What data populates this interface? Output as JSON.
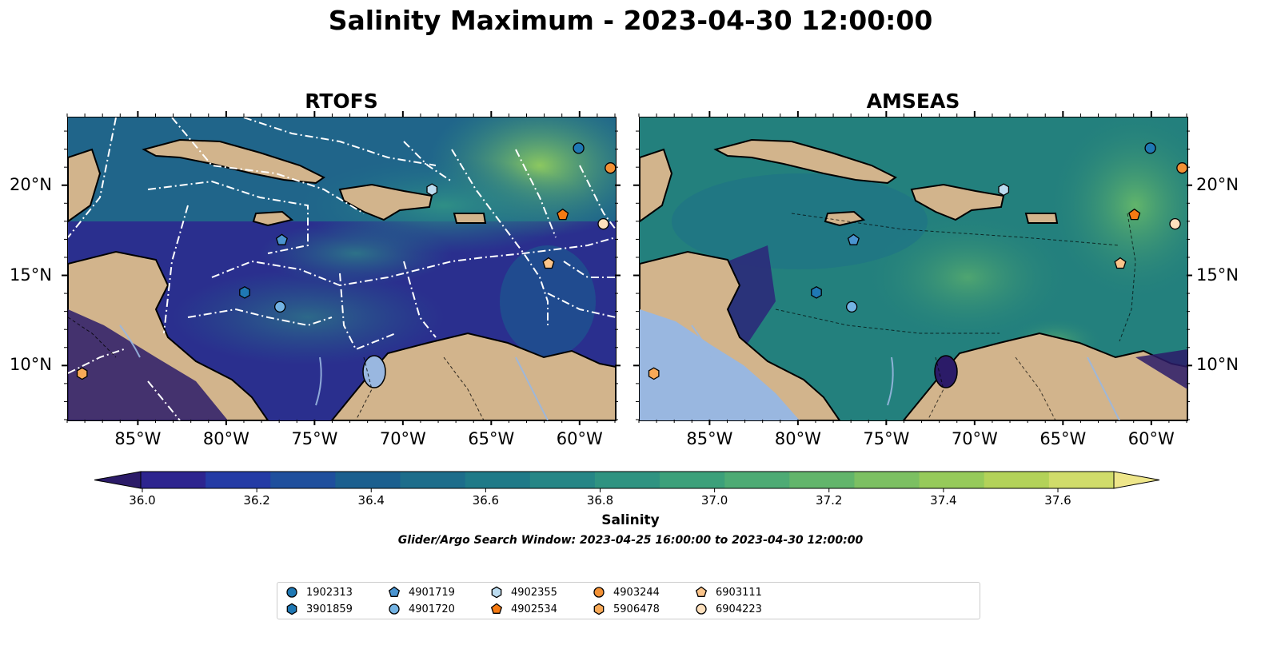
{
  "title": "Salinity Maximum - 2023-04-30 12:00:00",
  "panels": [
    {
      "title": "RTOFS"
    },
    {
      "title": "AMSEAS"
    }
  ],
  "axes": {
    "lon_labels": [
      "85°W",
      "80°W",
      "75°W",
      "70°W",
      "65°W",
      "60°W"
    ],
    "lat_labels": [
      "20°N",
      "15°N",
      "10°N"
    ]
  },
  "colorbar": {
    "label": "Salinity",
    "ticks": [
      "36.0",
      "36.2",
      "36.4",
      "36.6",
      "36.8",
      "37.0",
      "37.2",
      "37.4",
      "37.6"
    ],
    "min": 35.9,
    "max": 37.7,
    "colors": [
      "#2b1b68",
      "#2d248f",
      "#243ba5",
      "#1f4f9d",
      "#1b5f8f",
      "#1d6d8b",
      "#1f7a88",
      "#268686",
      "#2f9381",
      "#3ca07a",
      "#4dab74",
      "#62b56b",
      "#7cc062",
      "#96ca5a",
      "#b3d259",
      "#d0dc6a",
      "#eee68a"
    ]
  },
  "search_window": "Glider/Argo Search Window: 2023-04-25 16:00:00 to 2023-04-30 12:00:00",
  "colors": {
    "land": "#d2b48c",
    "lake": "#99b7e0",
    "rtofs_sea": "#2a2f8e",
    "amseas_sea": "#23807d"
  },
  "legend": [
    {
      "id": "1902313",
      "marker": "circle",
      "color": "#1f78b4"
    },
    {
      "id": "3901859",
      "marker": "hexagon",
      "color": "#1f78b4"
    },
    {
      "id": "4901719",
      "marker": "pentagon",
      "color": "#4a94d0"
    },
    {
      "id": "4901720",
      "marker": "circle",
      "color": "#73b3e3"
    },
    {
      "id": "4902355",
      "marker": "hexagon",
      "color": "#bcdcf0"
    },
    {
      "id": "4902534",
      "marker": "pentagon",
      "color": "#f57a12"
    },
    {
      "id": "4903244",
      "marker": "circle",
      "color": "#f39135"
    },
    {
      "id": "5906478",
      "marker": "hexagon",
      "color": "#f8a957"
    },
    {
      "id": "6903111",
      "marker": "pentagon",
      "color": "#fbc48a"
    },
    {
      "id": "6904223",
      "marker": "circle",
      "color": "#fde0bd"
    }
  ],
  "floats": [
    {
      "id": "1902313",
      "lon": -60.1,
      "lat": 22.1
    },
    {
      "id": "4903244",
      "lon": -58.3,
      "lat": 21.0
    },
    {
      "id": "4902355",
      "lon": -68.4,
      "lat": 19.8
    },
    {
      "id": "4902534",
      "lon": -61.0,
      "lat": 18.4
    },
    {
      "id": "6904223",
      "lon": -58.7,
      "lat": 17.9
    },
    {
      "id": "4901719",
      "lon": -76.9,
      "lat": 17.0
    },
    {
      "id": "6903111",
      "lon": -61.8,
      "lat": 15.7
    },
    {
      "id": "3901859",
      "lon": -79.0,
      "lat": 14.1
    },
    {
      "id": "4901720",
      "lon": -77.0,
      "lat": 13.3
    },
    {
      "id": "5906478",
      "lon": -88.2,
      "lat": 9.6
    }
  ]
}
